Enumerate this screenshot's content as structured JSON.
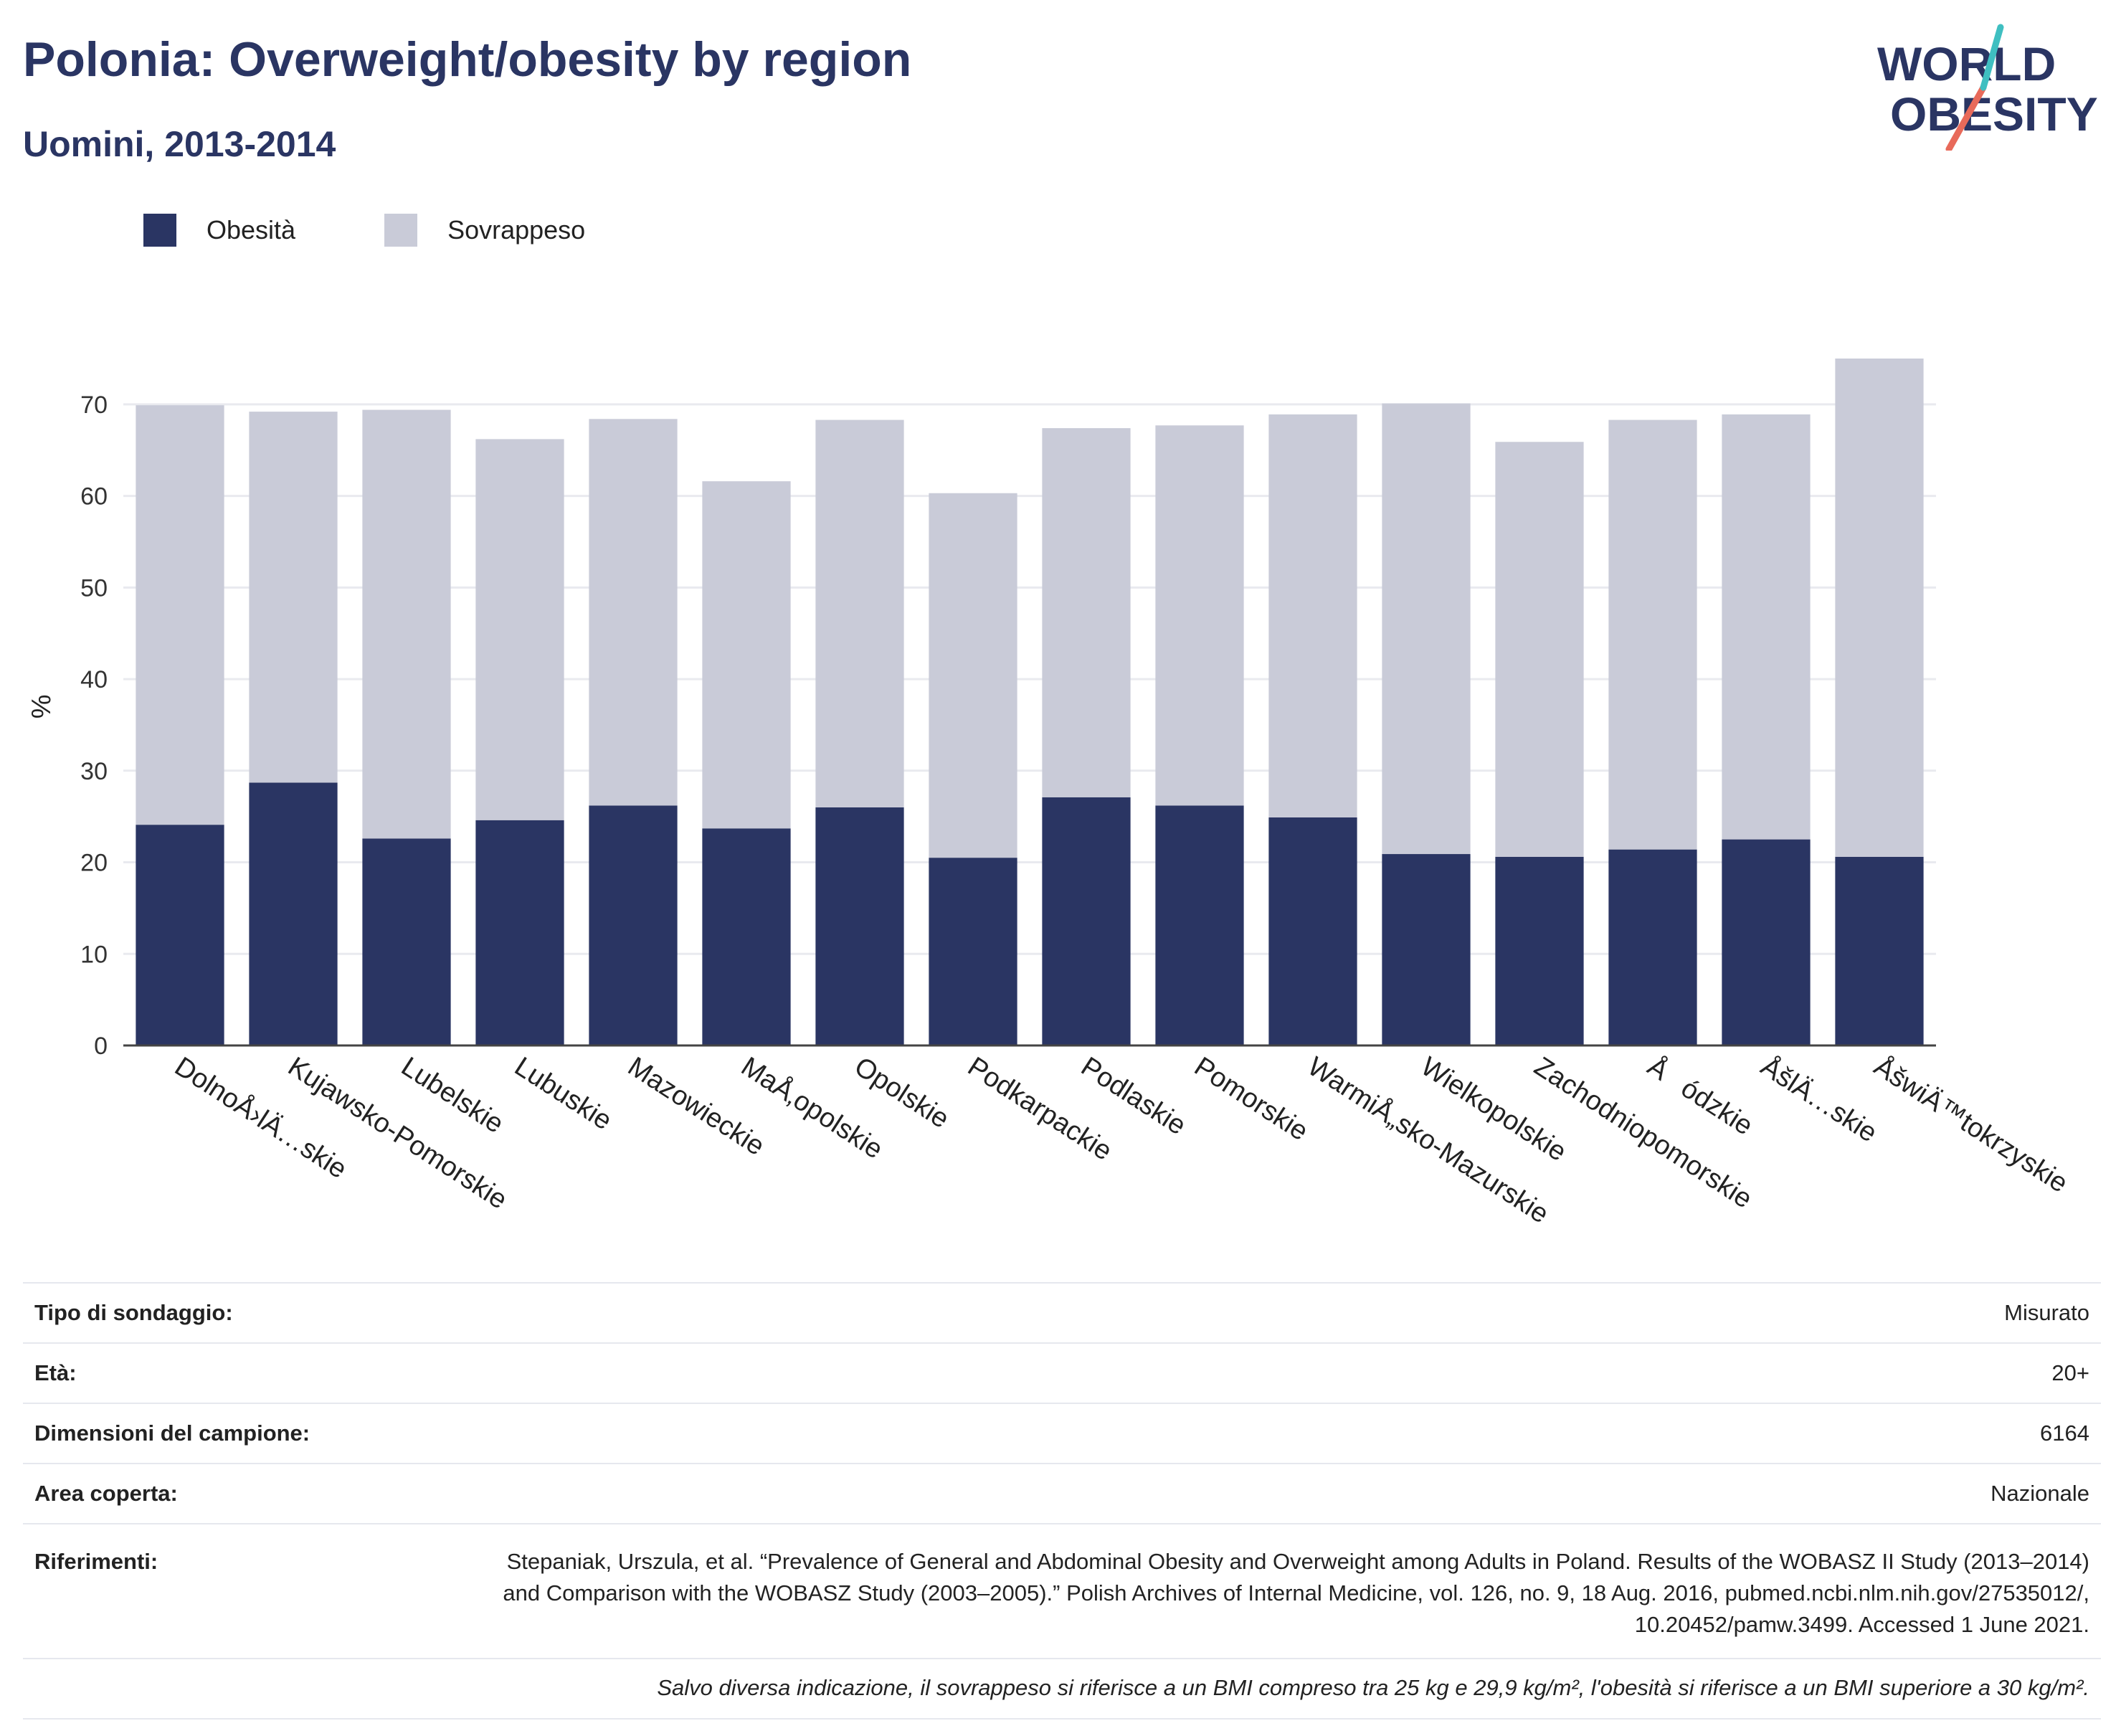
{
  "header": {
    "title": "Polonia: Overweight/obesity by region",
    "subtitle": "Uomini, 2013-2014"
  },
  "logo": {
    "line1": "WORLD",
    "line2": "OBESITY"
  },
  "legend": [
    {
      "label": "Obesità",
      "color": "#2a3563"
    },
    {
      "label": "Sovrappeso",
      "color": "#c9cbd8"
    }
  ],
  "chart_data": {
    "type": "bar",
    "stacked": true,
    "categories": [
      "DolnoÅ›lÄ…skie",
      "Kujawsko-Pomorskie",
      "Lubelskie",
      "Lubuskie",
      "Mazowieckie",
      "MaÅ‚opolskie",
      "Opolskie",
      "Podkarpackie",
      "Podlaskie",
      "Pomorskie",
      "WarmiÅ„sko-Mazurskie",
      "Wielkopolskie",
      "Zachodniopomorskie",
      "Åódzkie",
      "ÅšlÄ…skie",
      "ÅšwiÄ™tokrzyskie"
    ],
    "series": [
      {
        "name": "Obesità",
        "color": "#2a3563",
        "values": [
          24.1,
          28.7,
          22.6,
          24.6,
          26.2,
          23.7,
          26.0,
          20.5,
          27.1,
          26.2,
          24.9,
          20.9,
          20.6,
          21.4,
          22.5,
          20.6
        ]
      },
      {
        "name": "Sovrappeso",
        "color": "#c9cbd8",
        "values": [
          45.8,
          40.5,
          46.8,
          41.6,
          42.2,
          37.9,
          42.3,
          39.8,
          40.3,
          41.5,
          44.0,
          49.2,
          45.3,
          46.9,
          46.4,
          54.4
        ]
      }
    ],
    "ylabel": "%",
    "ylim": [
      0,
      75
    ],
    "yticks": [
      0,
      10,
      20,
      30,
      40,
      50,
      60,
      70
    ],
    "grid": true
  },
  "info": {
    "survey_type": {
      "label": "Tipo di sondaggio:",
      "value": "Misurato"
    },
    "age": {
      "label": "Età:",
      "value": "20+"
    },
    "sample_size": {
      "label": "Dimensioni del campione:",
      "value": "6164"
    },
    "area": {
      "label": "Area coperta:",
      "value": "Nazionale"
    },
    "references": {
      "label": "Riferimenti:",
      "value": "Stepaniak, Urszula, et al. “Prevalence of General and Abdominal Obesity and Overweight among Adults in Poland. Results of the WOBASZ II Study (2013–2014) and Comparison with the WOBASZ Study (2003–2005).” Polish Archives of Internal Medicine, vol. 126, no. 9, 18 Aug. 2016, pubmed.ncbi.nlm.nih.gov/27535012/, 10.20452/pamw.3499. Accessed 1 June 2021."
    },
    "note": "Salvo diversa indicazione, il sovrappeso si riferisce a un BMI compreso tra 25 kg e 29,9 kg/m², l'obesità si riferisce a un BMI superiore a 30 kg/m²."
  }
}
